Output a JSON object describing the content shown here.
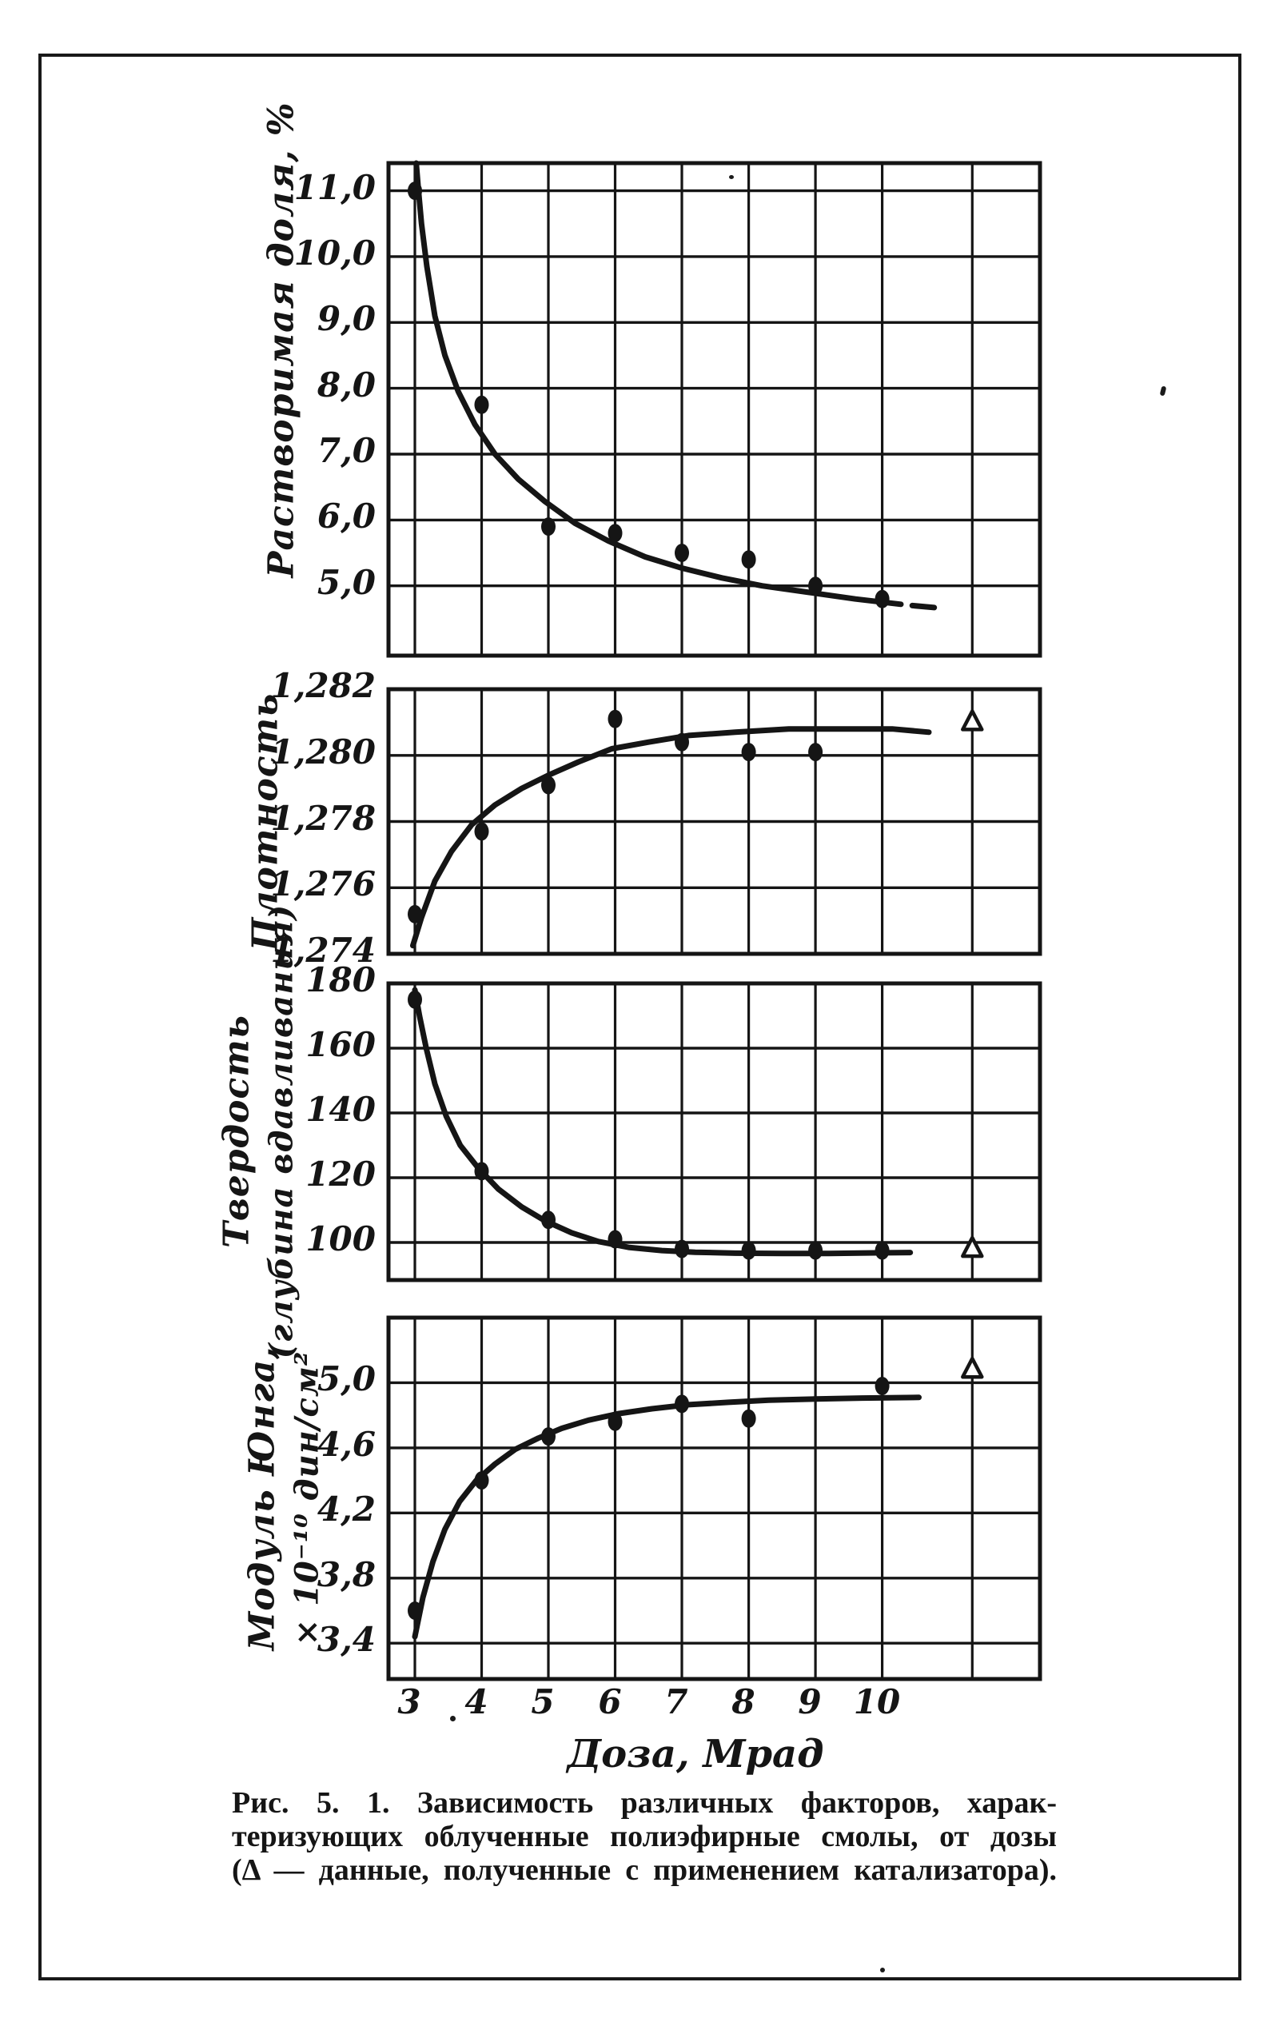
{
  "page": {
    "paper_color": "#ffffff",
    "ink_color": "#151515",
    "figure_caption": {
      "line1": "Рис. 5. 1. Зависимость различных факторов, харак-",
      "line2": "теризующих облученные полиэфирные смолы, от дозы",
      "line3": "(Δ — данные, полученные с применением катализатора)."
    }
  },
  "x_axis": {
    "title": "Доза, Мрад",
    "ticks": [
      {
        "v": 3,
        "label": "3"
      },
      {
        "v": 4,
        "label": "4"
      },
      {
        "v": 5,
        "label": "5"
      },
      {
        "v": 6,
        "label": "6"
      },
      {
        "v": 7,
        "label": "7"
      },
      {
        "v": 8,
        "label": "8"
      },
      {
        "v": 9,
        "label": "9"
      },
      {
        "v": 10,
        "label": "10"
      }
    ],
    "xlim": [
      2.605,
      12.364
    ],
    "extra_gridline_v": 11.35,
    "grid": "on"
  },
  "chart_data": [
    {
      "type": "line",
      "id": "soluble-fraction",
      "ylabel_lines": [
        "Растворимая доля, %"
      ],
      "ylim": [
        3.94,
        11.42
      ],
      "yticks": [
        {
          "v": 11.0,
          "label": "11,0"
        },
        {
          "v": 10.0,
          "label": "10,0"
        },
        {
          "v": 9.0,
          "label": "9,0"
        },
        {
          "v": 8.0,
          "label": "8,0"
        },
        {
          "v": 7.0,
          "label": "7,0"
        },
        {
          "v": 6.0,
          "label": "6,0"
        },
        {
          "v": 5.0,
          "label": "5,0"
        }
      ],
      "points": [
        [
          3,
          11.0
        ],
        [
          4,
          7.75
        ],
        [
          5,
          5.9
        ],
        [
          6,
          5.8
        ],
        [
          7,
          5.5
        ],
        [
          8,
          5.4
        ],
        [
          9,
          5.0
        ],
        [
          10,
          4.8
        ]
      ],
      "triangle_points": [],
      "curve_segments": [
        [
          [
            3.02,
            11.42
          ],
          [
            3.05,
            11.05
          ],
          [
            3.1,
            10.5
          ],
          [
            3.18,
            9.85
          ],
          [
            3.3,
            9.1
          ],
          [
            3.45,
            8.5
          ],
          [
            3.65,
            7.95
          ],
          [
            3.9,
            7.45
          ],
          [
            4.2,
            7.0
          ],
          [
            4.55,
            6.62
          ],
          [
            4.95,
            6.28
          ],
          [
            5.4,
            5.95
          ],
          [
            5.9,
            5.68
          ],
          [
            6.45,
            5.44
          ],
          [
            7.0,
            5.27
          ],
          [
            7.6,
            5.12
          ],
          [
            8.2,
            5.0
          ],
          [
            8.9,
            4.9
          ],
          [
            9.6,
            4.8
          ],
          [
            10.28,
            4.72
          ]
        ],
        [
          [
            10.45,
            4.7
          ],
          [
            10.78,
            4.67
          ]
        ]
      ]
    },
    {
      "type": "line",
      "id": "density",
      "ylabel_lines": [
        "Плотность"
      ],
      "ylim": [
        1.274,
        1.282
      ],
      "yticks": [
        {
          "v": 1.282,
          "label": "1,282"
        },
        {
          "v": 1.28,
          "label": "1,280"
        },
        {
          "v": 1.278,
          "label": "1,278"
        },
        {
          "v": 1.276,
          "label": "1,276"
        },
        {
          "v": 1.274,
          "label": "1,274"
        }
      ],
      "points": [
        [
          3,
          1.2752
        ],
        [
          4,
          1.2777
        ],
        [
          5,
          1.2791
        ],
        [
          6,
          1.2811
        ],
        [
          7,
          1.2804
        ],
        [
          8,
          1.2801
        ],
        [
          9,
          1.2801
        ]
      ],
      "triangle_points": [
        [
          11.35,
          1.281
        ]
      ],
      "curve_segments": [
        [
          [
            2.97,
            1.27425
          ],
          [
            3.1,
            1.2751
          ],
          [
            3.3,
            1.2762
          ],
          [
            3.55,
            1.2771
          ],
          [
            3.85,
            1.2779
          ],
          [
            4.2,
            1.2785
          ],
          [
            4.6,
            1.279
          ],
          [
            5.0,
            1.2794
          ],
          [
            5.45,
            1.2798
          ],
          [
            5.95,
            1.2802
          ],
          [
            6.5,
            1.2804
          ],
          [
            7.1,
            1.2806
          ],
          [
            7.8,
            1.2807
          ],
          [
            8.6,
            1.2808
          ],
          [
            9.4,
            1.2808
          ],
          [
            10.15,
            1.2808
          ],
          [
            10.7,
            1.2807
          ]
        ]
      ]
    },
    {
      "type": "line",
      "id": "hardness-indentation-depth",
      "ylabel_lines": [
        "Твердость",
        "(глубина вдавливания)"
      ],
      "ylim": [
        88.4,
        180
      ],
      "yticks": [
        {
          "v": 180,
          "label": "180"
        },
        {
          "v": 160,
          "label": "160"
        },
        {
          "v": 140,
          "label": "140"
        },
        {
          "v": 120,
          "label": "120"
        },
        {
          "v": 100,
          "label": "100"
        }
      ],
      "points": [
        [
          3,
          175
        ],
        [
          4,
          122
        ],
        [
          5,
          107
        ],
        [
          6,
          101
        ],
        [
          7,
          98
        ],
        [
          8,
          97.5
        ],
        [
          9,
          97.5
        ],
        [
          10,
          97.5
        ]
      ],
      "triangle_points": [
        [
          11.35,
          98
        ]
      ],
      "curve_segments": [
        [
          [
            3.0,
            178
          ],
          [
            3.07,
            170
          ],
          [
            3.17,
            160
          ],
          [
            3.3,
            149
          ],
          [
            3.47,
            139
          ],
          [
            3.68,
            130
          ],
          [
            3.95,
            123
          ],
          [
            4.25,
            116.5
          ],
          [
            4.6,
            111
          ],
          [
            4.95,
            106.7
          ],
          [
            5.35,
            103
          ],
          [
            5.75,
            100.3
          ],
          [
            6.2,
            98.5
          ],
          [
            6.7,
            97.5
          ],
          [
            7.2,
            97.0
          ],
          [
            7.8,
            96.7
          ],
          [
            8.5,
            96.6
          ],
          [
            9.2,
            96.6
          ],
          [
            9.9,
            96.8
          ],
          [
            10.42,
            96.9
          ]
        ]
      ]
    },
    {
      "type": "line",
      "id": "youngs-modulus",
      "ylabel_lines": [
        "Модуль Юнга,",
        "× 10⁻¹⁰ дин/см²"
      ],
      "ylim": [
        3.18,
        5.4
      ],
      "yticks": [
        {
          "v": 5.0,
          "label": "5,0"
        },
        {
          "v": 4.6,
          "label": "4,6"
        },
        {
          "v": 4.2,
          "label": "4,2"
        },
        {
          "v": 3.8,
          "label": "3,8"
        },
        {
          "v": 3.4,
          "label": "3,4"
        }
      ],
      "points": [
        [
          3,
          3.6
        ],
        [
          4,
          4.4
        ],
        [
          5,
          4.67
        ],
        [
          6,
          4.76
        ],
        [
          7,
          4.87
        ],
        [
          8,
          4.78
        ],
        [
          10,
          4.98
        ]
      ],
      "triangle_points": [
        [
          11.35,
          5.08
        ]
      ],
      "curve_segments": [
        [
          [
            3.0,
            3.44
          ],
          [
            3.12,
            3.68
          ],
          [
            3.27,
            3.9
          ],
          [
            3.45,
            4.1
          ],
          [
            3.67,
            4.27
          ],
          [
            3.92,
            4.4
          ],
          [
            4.2,
            4.5
          ],
          [
            4.5,
            4.59
          ],
          [
            4.85,
            4.66
          ],
          [
            5.2,
            4.72
          ],
          [
            5.6,
            4.77
          ],
          [
            6.05,
            4.81
          ],
          [
            6.55,
            4.84
          ],
          [
            7.1,
            4.865
          ],
          [
            7.7,
            4.88
          ],
          [
            8.3,
            4.893
          ],
          [
            9.0,
            4.9
          ],
          [
            9.7,
            4.906
          ],
          [
            10.55,
            4.91
          ]
        ]
      ]
    }
  ]
}
